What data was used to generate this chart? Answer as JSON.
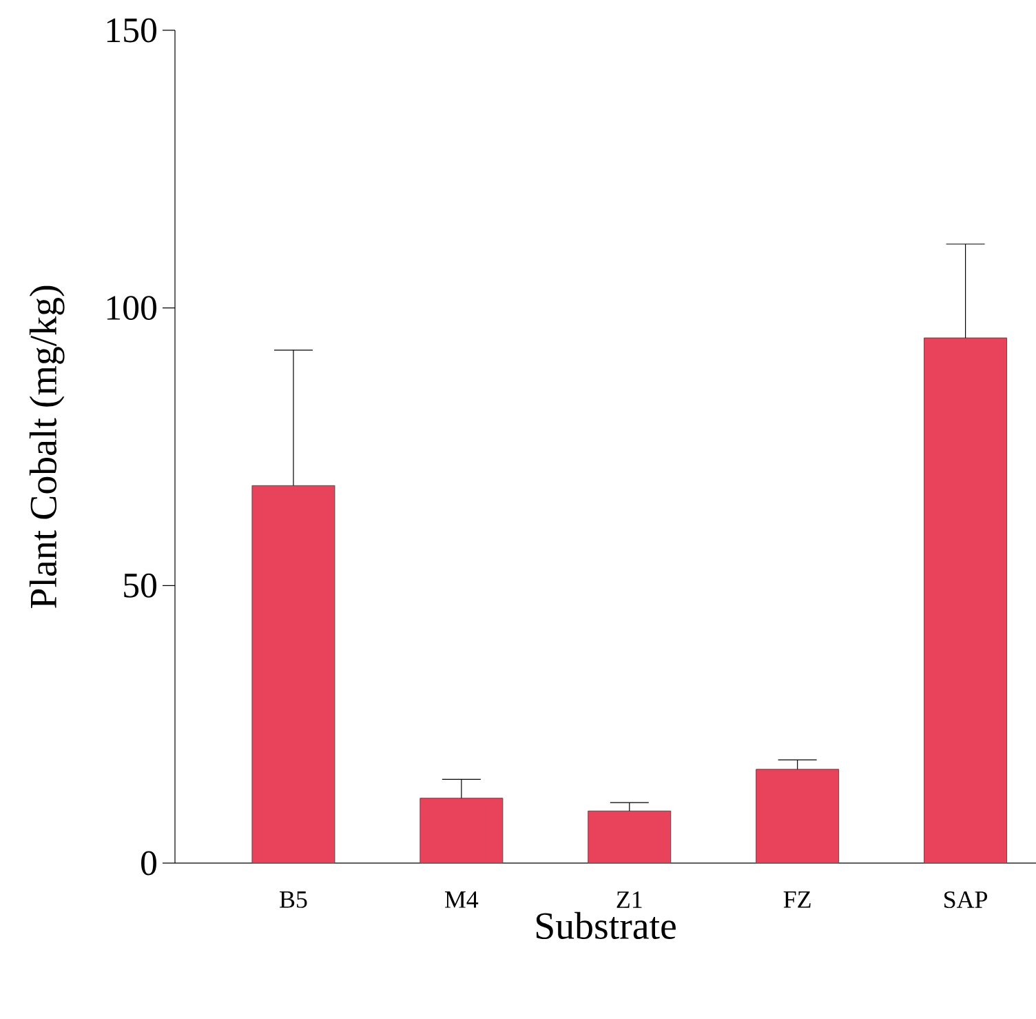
{
  "chart_data": {
    "type": "bar",
    "xlabel": "Substrate",
    "ylabel": "Plant Cobalt (mg/kg)",
    "categories": [
      "B5",
      "M4",
      "Z1",
      "FZ",
      "SAP"
    ],
    "values": [
      68,
      11.7,
      9.4,
      16.9,
      94.6
    ],
    "errors": [
      [
        68,
        92.4
      ],
      [
        11.7,
        15.1
      ],
      [
        9.4,
        10.9
      ],
      [
        16.9,
        18.6
      ],
      [
        94.6,
        111.5
      ]
    ],
    "color": "#e8435a",
    "ylim": [
      0,
      150
    ],
    "yticks": [
      0,
      50,
      100,
      150
    ]
  }
}
